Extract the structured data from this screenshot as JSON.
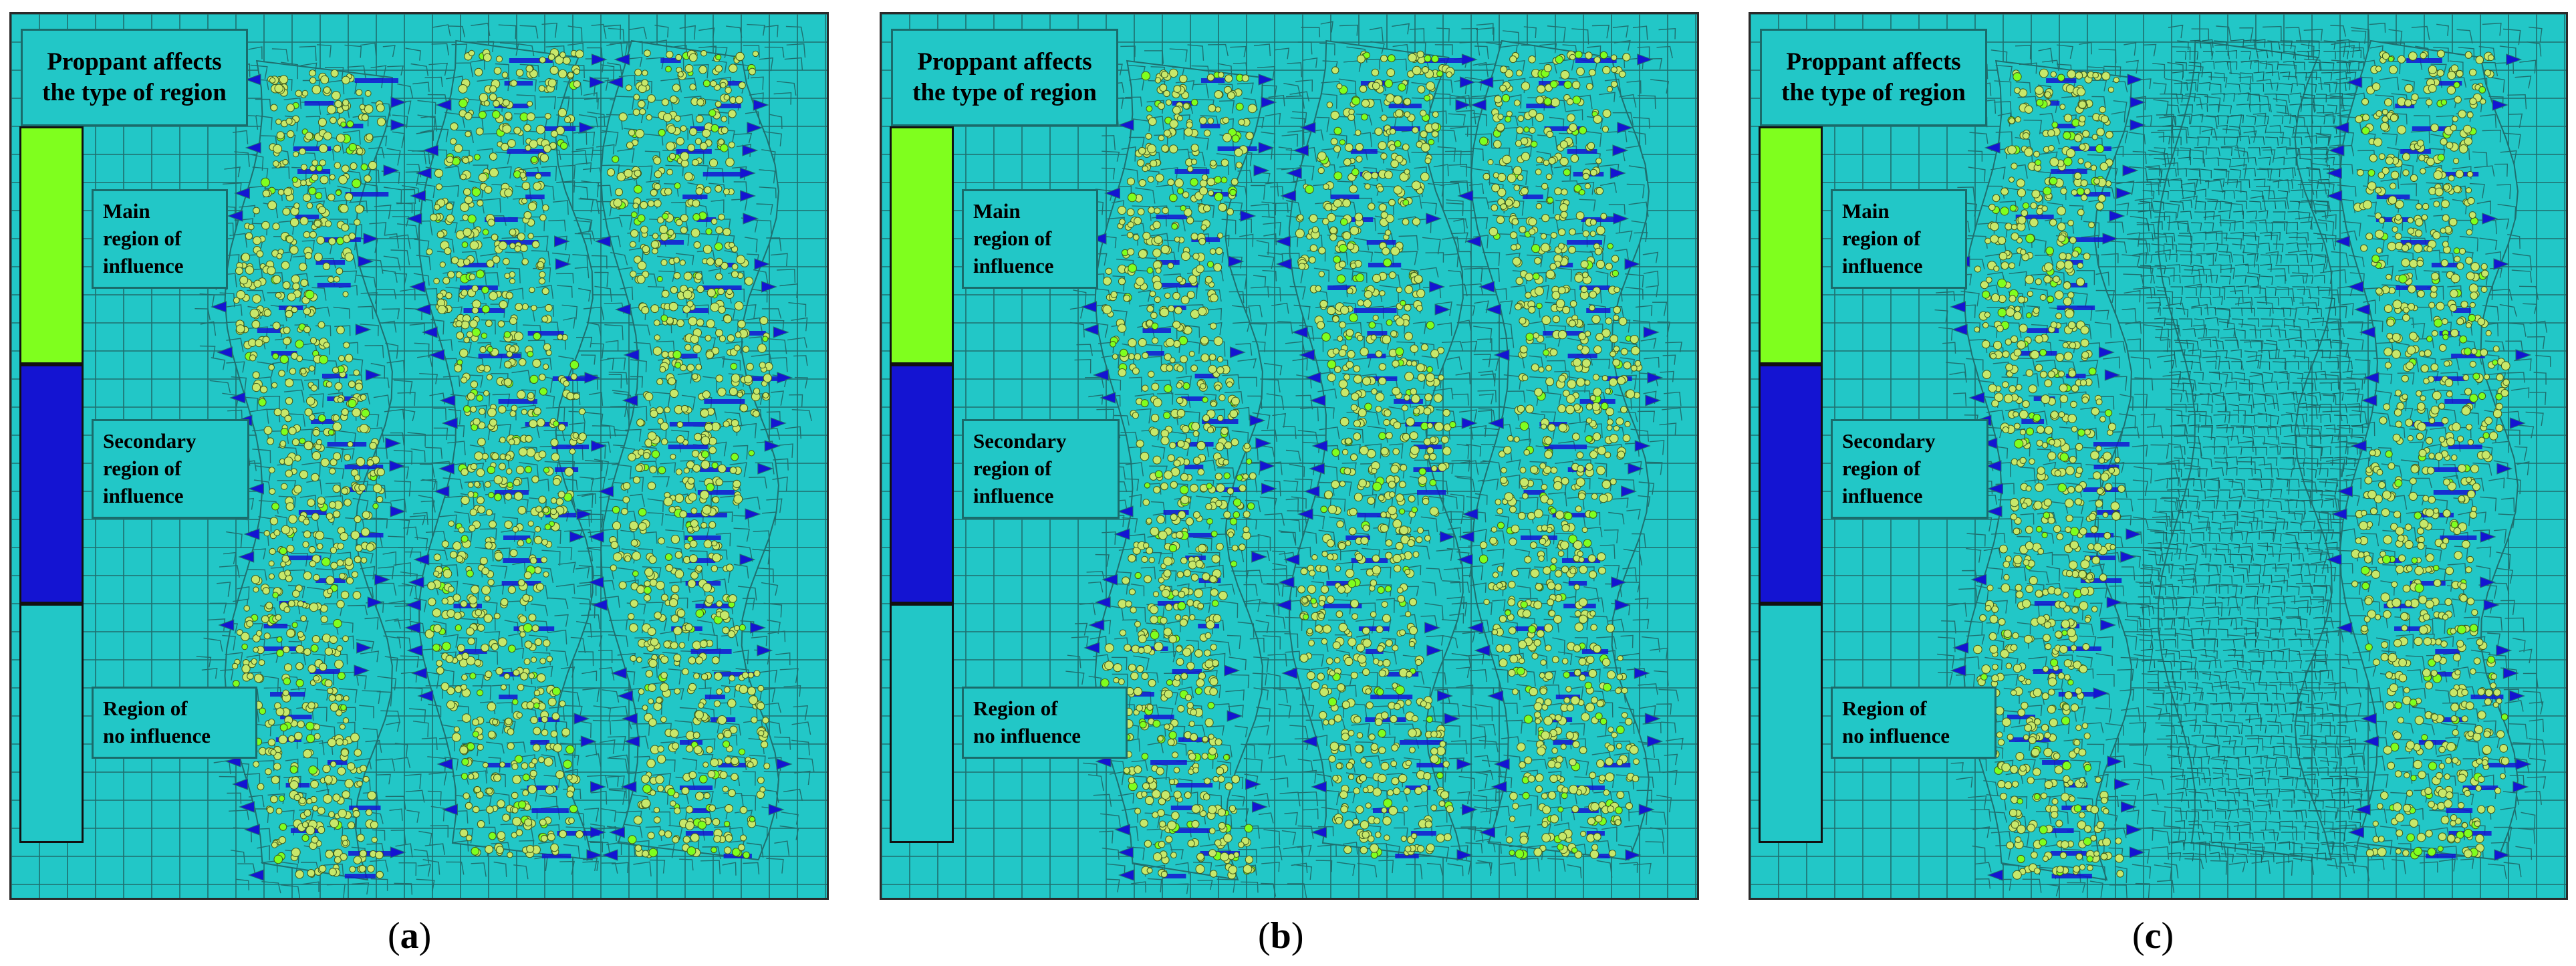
{
  "legend": {
    "title_line1": "Proppant affects",
    "title_line2": "the type of region",
    "main": [
      "Main",
      "region of",
      "influence"
    ],
    "secondary": [
      "Secondary",
      "region of",
      "influence"
    ],
    "none": [
      "Region of",
      "no influence"
    ]
  },
  "colors": {
    "main": "#7fff1e",
    "secondary": "#1414d2",
    "none": "#22c7c7",
    "mesh_line": "#1f6f6f",
    "grain": "#c8e86a"
  },
  "panels": [
    {
      "caption": "a",
      "middle_column_affected": true
    },
    {
      "caption": "b",
      "middle_column_affected": true
    },
    {
      "caption": "c",
      "middle_column_affected": false
    }
  ]
}
